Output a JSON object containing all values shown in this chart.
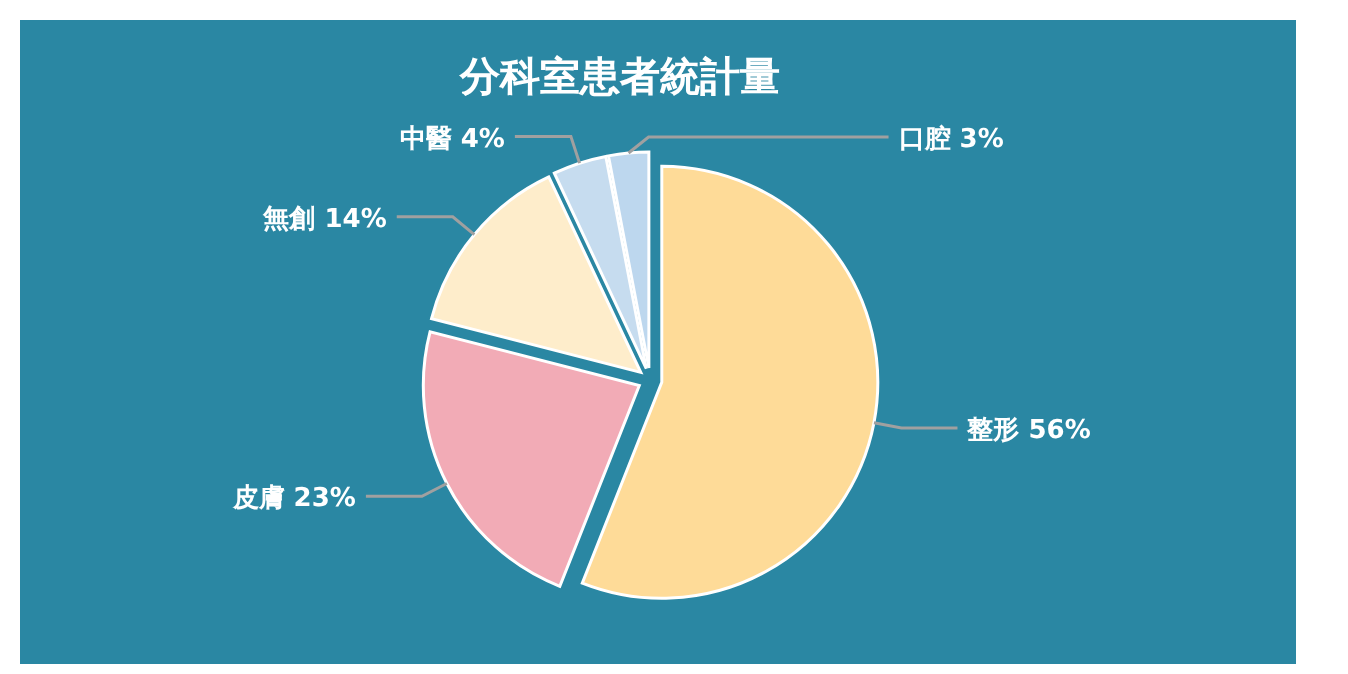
{
  "chart_data": {
    "type": "pie",
    "title": "分科室患者統計量",
    "categories": [
      "整形",
      "皮膚",
      "無創",
      "中醫",
      "口腔"
    ],
    "values": [
      56,
      23,
      14,
      4,
      3
    ],
    "colors": [
      "#fedb98",
      "#f2abb6",
      "#feedcb",
      "#c6dcef",
      "#bdd7ee"
    ],
    "value_labels": [
      "56%",
      "23%",
      "14%",
      "4%",
      "3%"
    ]
  }
}
